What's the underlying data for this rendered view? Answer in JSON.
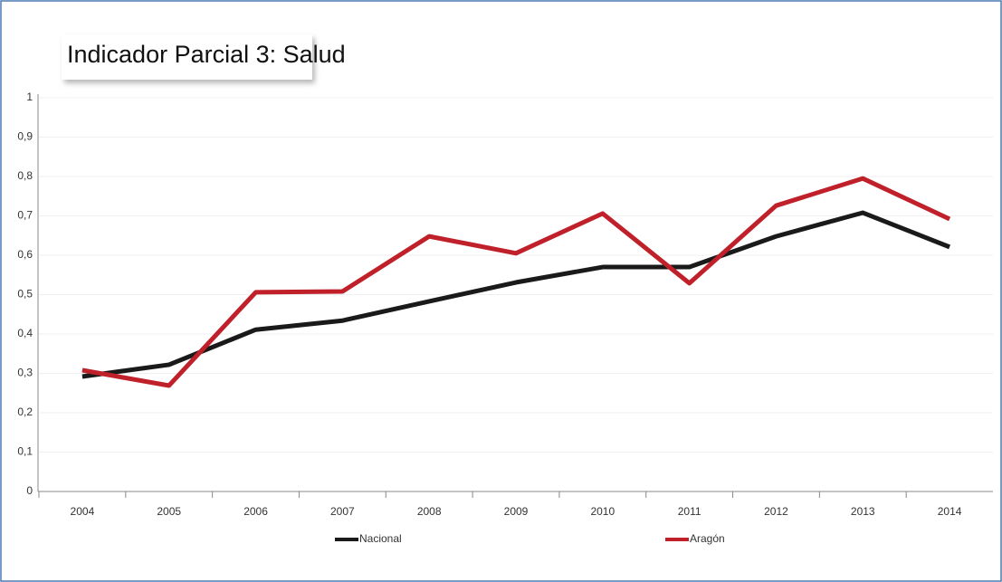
{
  "chart_data": {
    "type": "line",
    "title": "Indicador Parcial 3: Salud",
    "categories": [
      "2004",
      "2005",
      "2006",
      "2007",
      "2008",
      "2009",
      "2010",
      "2011",
      "2012",
      "2013",
      "2014"
    ],
    "series": [
      {
        "name": "Nacional",
        "color": "#1a1a1a",
        "values": [
          0.292,
          0.322,
          0.411,
          0.434,
          0.483,
          0.531,
          0.57,
          0.57,
          0.648,
          0.708,
          0.621
        ]
      },
      {
        "name": "Aragón",
        "color": "#c0202a",
        "values": [
          0.308,
          0.269,
          0.506,
          0.508,
          0.648,
          0.605,
          0.706,
          0.529,
          0.726,
          0.795,
          0.692
        ]
      }
    ],
    "ylim": [
      0,
      1
    ],
    "yticks": [
      0,
      {
        "value": 0.1,
        "label": "0,1"
      },
      {
        "value": 0.2,
        "label": "0,2"
      },
      {
        "value": 0.3,
        "label": "0,3"
      },
      {
        "value": 0.4,
        "label": "0,4"
      },
      {
        "value": 0.5,
        "label": "0,5"
      },
      {
        "value": 0.6,
        "label": "0,6"
      },
      {
        "value": 0.7,
        "label": "0,7"
      },
      {
        "value": 0.8,
        "label": "0,8"
      },
      {
        "value": 0.9,
        "label": "0,9"
      },
      1
    ],
    "grid": true
  }
}
